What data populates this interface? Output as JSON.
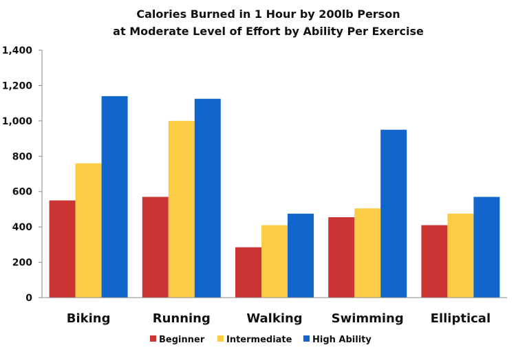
{
  "chart_data": {
    "type": "bar",
    "title": "Calories Burned in 1 Hour by 200lb Person",
    "subtitle": "at Moderate Level of Effort by Ability Per Exercise",
    "categories": [
      "Biking",
      "Running",
      "Walking",
      "Swimming",
      "Elliptical"
    ],
    "series": [
      {
        "name": "Beginner",
        "color": "#CC3333",
        "values": [
          550,
          570,
          285,
          455,
          410
        ]
      },
      {
        "name": "Intermediate",
        "color": "#FBCD45",
        "values": [
          760,
          1000,
          410,
          505,
          475
        ]
      },
      {
        "name": "High Ability",
        "color": "#1166CC",
        "values": [
          1140,
          1125,
          475,
          950,
          570
        ]
      }
    ],
    "ylim": [
      0,
      1400
    ],
    "yticks": [
      "0",
      "200",
      "400",
      "600",
      "800",
      "1,000",
      "1,200",
      "1,400"
    ],
    "grid": false,
    "legend": "bottom"
  }
}
